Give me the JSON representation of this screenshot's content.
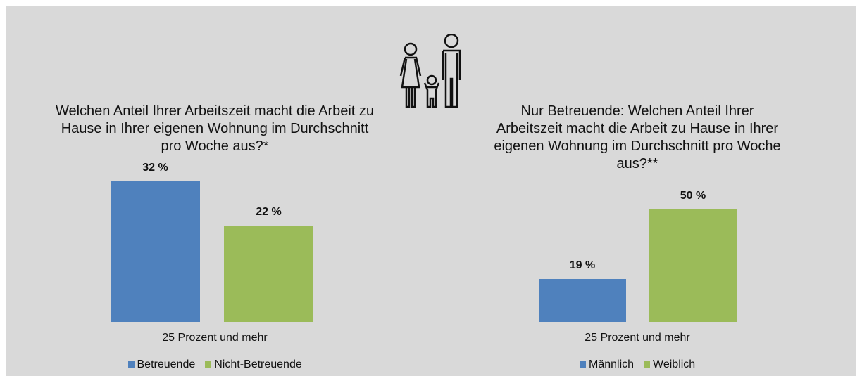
{
  "chart_data": [
    {
      "type": "bar",
      "title": "Welchen Anteil Ihrer Arbeitszeit macht die Arbeit zu Hause in Ihrer eigenen Wohnung im Durchschnitt pro Woche aus?*",
      "categories": [
        "25 Prozent und mehr"
      ],
      "series": [
        {
          "name": "Betreuende",
          "color": "#4f81bd",
          "values": [
            32
          ],
          "value_labels": [
            "32 %"
          ]
        },
        {
          "name": "Nicht-Betreuende",
          "color": "#9bbb59",
          "values": [
            22
          ],
          "value_labels": [
            "22 %"
          ]
        }
      ]
    },
    {
      "type": "bar",
      "title": "Nur Betreuende: Welchen Anteil Ihrer Arbeitszeit macht die Arbeit zu Hause in Ihrer eigenen Wohnung im Durchschnitt pro Woche aus?**",
      "categories": [
        "25 Prozent und mehr"
      ],
      "series": [
        {
          "name": "Männlich",
          "color": "#4f81bd",
          "values": [
            19
          ],
          "value_labels": [
            "19 %"
          ]
        },
        {
          "name": "Weiblich",
          "color": "#9bbb59",
          "values": [
            50
          ],
          "value_labels": [
            "50 %"
          ]
        }
      ]
    }
  ]
}
